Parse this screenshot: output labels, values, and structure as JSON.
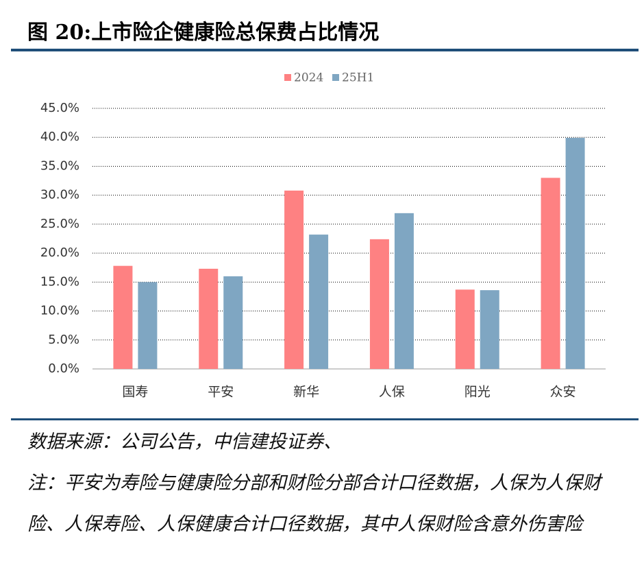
{
  "chart_data": {
    "type": "bar",
    "title": "图 20:上市险企健康险总保费占比情况",
    "categories": [
      "国寿",
      "平安",
      "新华",
      "人保",
      "阳光",
      "众安"
    ],
    "series": [
      {
        "name": "2024",
        "color": "#fe8182",
        "values": [
          17.8,
          17.3,
          30.8,
          22.4,
          13.7,
          33.0
        ]
      },
      {
        "name": "25H1",
        "color": "#7fa6c2",
        "values": [
          15.0,
          16.0,
          23.2,
          26.9,
          13.6,
          39.9
        ]
      }
    ],
    "ylim": [
      0,
      45
    ],
    "yticks": [
      {
        "value": 0,
        "label": "0.0%"
      },
      {
        "value": 5,
        "label": "5.0%"
      },
      {
        "value": 10,
        "label": "10.0%"
      },
      {
        "value": 15,
        "label": "15.0%"
      },
      {
        "value": 20,
        "label": "20.0%"
      },
      {
        "value": 25,
        "label": "25.0%"
      },
      {
        "value": 30,
        "label": "30.0%"
      },
      {
        "value": 35,
        "label": "35.0%"
      },
      {
        "value": 40,
        "label": "40.0%"
      },
      {
        "value": 45,
        "label": "45.0%"
      }
    ],
    "grid": true,
    "source": "数据来源：公司公告，中信建投证券、",
    "note": "注：平安为寿险与健康险分部和财险分部合计口径数据，人保为人保财险、人保寿险、人保健康合计口径数据，其中人保财险含意外伤害险"
  }
}
